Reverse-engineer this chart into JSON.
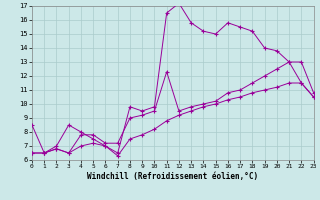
{
  "line1_x": [
    0,
    1,
    2,
    3,
    4,
    5,
    6,
    7,
    8,
    9,
    10,
    11,
    12,
    13,
    14,
    15,
    16,
    17,
    18,
    19,
    20,
    21,
    22,
    23
  ],
  "line1_y": [
    8.5,
    6.5,
    7.0,
    8.5,
    8.0,
    7.5,
    7.0,
    6.5,
    9.8,
    9.5,
    9.8,
    16.5,
    17.2,
    15.8,
    15.2,
    15.0,
    15.8,
    15.5,
    15.2,
    14.0,
    13.8,
    13.0,
    11.5,
    10.5
  ],
  "line2_x": [
    0,
    1,
    2,
    3,
    4,
    5,
    6,
    7,
    8,
    9,
    10,
    11,
    12,
    13,
    14,
    15,
    16,
    17,
    18,
    19,
    20,
    21,
    22,
    23
  ],
  "line2_y": [
    6.5,
    6.5,
    6.8,
    6.5,
    7.8,
    7.8,
    7.2,
    7.2,
    9.0,
    9.2,
    9.5,
    12.3,
    9.5,
    9.8,
    10.0,
    10.2,
    10.8,
    11.0,
    11.5,
    12.0,
    12.5,
    13.0,
    13.0,
    10.8
  ],
  "line3_x": [
    0,
    1,
    2,
    3,
    4,
    5,
    6,
    7,
    8,
    9,
    10,
    11,
    12,
    13,
    14,
    15,
    16,
    17,
    18,
    19,
    20,
    21,
    22,
    23
  ],
  "line3_y": [
    6.5,
    6.5,
    6.8,
    6.5,
    7.0,
    7.2,
    7.0,
    6.3,
    7.5,
    7.8,
    8.2,
    8.8,
    9.2,
    9.5,
    9.8,
    10.0,
    10.3,
    10.5,
    10.8,
    11.0,
    11.2,
    11.5,
    11.5,
    10.5
  ],
  "line_color": "#990099",
  "bg_color": "#cce8e8",
  "grid_color": "#aacccc",
  "xlabel": "Windchill (Refroidissement éolien,°C)",
  "xlim": [
    0,
    23
  ],
  "ylim": [
    6,
    17
  ],
  "yticks": [
    6,
    7,
    8,
    9,
    10,
    11,
    12,
    13,
    14,
    15,
    16,
    17
  ],
  "xticks": [
    0,
    1,
    2,
    3,
    4,
    5,
    6,
    7,
    8,
    9,
    10,
    11,
    12,
    13,
    14,
    15,
    16,
    17,
    18,
    19,
    20,
    21,
    22,
    23
  ]
}
